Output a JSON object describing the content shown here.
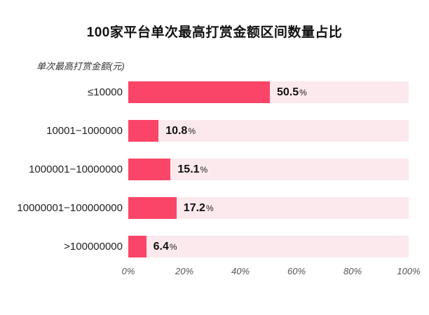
{
  "chart_data": {
    "type": "bar",
    "orientation": "horizontal",
    "title": "100家平台单次最高打赏金额区间数量占比",
    "category_axis_label": "单次最高打赏金额(元)",
    "categories": [
      "≤10000",
      "10001−1000000",
      "1000001−10000000",
      "10000001−100000000",
      ">100000000"
    ],
    "values": [
      50.5,
      10.8,
      15.1,
      17.2,
      6.4
    ],
    "value_labels": [
      "50.5",
      "10.8",
      "15.1",
      "17.2",
      "6.4"
    ],
    "value_suffix": "%",
    "x_ticks": [
      "0%",
      "20%",
      "40%",
      "60%",
      "80%",
      "100%"
    ],
    "xlim": [
      0,
      100
    ],
    "grid": false,
    "legend": "none",
    "colors": {
      "bar": "#fa4568",
      "track": "#fce9ed",
      "title_text": "#111111",
      "category_text": "#222222",
      "tick_text": "#555555"
    }
  }
}
